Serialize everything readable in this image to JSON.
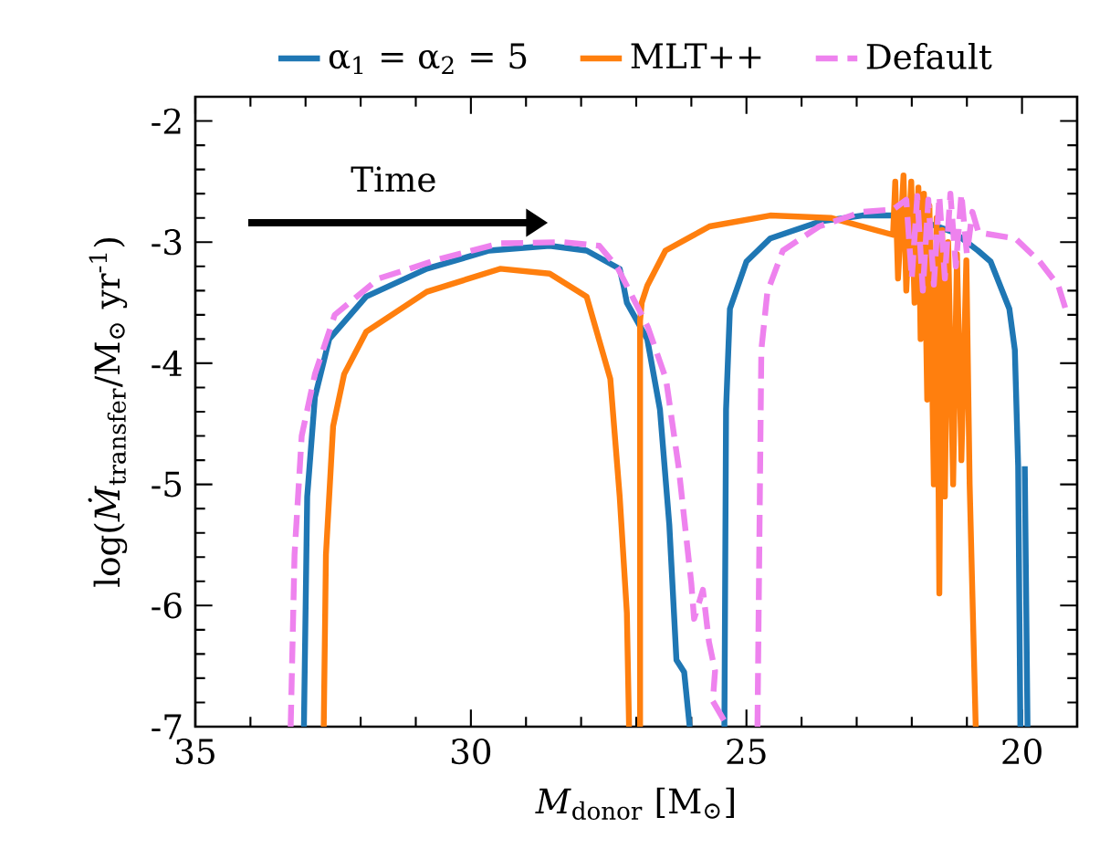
{
  "chart_data": {
    "type": "line",
    "xlabel": "*M*$_{donor}$ [M$_{⊙}$]",
    "ylabel": "log(*Ṁ*$_{transfer}$/M$_{⊙}$ yr$^{-1}$)",
    "annotations": [
      "Time"
    ],
    "xlim": [
      35,
      19
    ],
    "ylim": [
      -7,
      -1.8
    ],
    "xticks": [
      35,
      30,
      25,
      20
    ],
    "yticks": [
      -7,
      -6,
      -5,
      -4,
      -3,
      -2
    ],
    "legend": "top",
    "series": [
      {
        "name": "α$_{1}$ = α$_{2}$ = 5",
        "color": "#1f77b4",
        "line_style": "solid",
        "x": [
          33.03,
          32.97,
          32.83,
          32.57,
          31.9,
          30.8,
          29.67,
          28.57,
          27.9,
          27.3,
          27.23,
          27.17,
          26.8,
          26.57,
          26.4,
          26.27,
          26.13,
          26.03,
          null,
          25.4,
          25.37,
          25.3,
          25.0,
          24.57,
          23.67,
          22.9,
          22.33,
          22.13,
          21.67,
          21.23,
          20.8,
          20.57,
          20.23,
          20.13,
          20.07,
          20.03,
          null,
          19.95,
          19.9
        ],
        "values": [
          -7,
          -5.1,
          -4.28,
          -3.8,
          -3.45,
          -3.22,
          -3.07,
          -3.03,
          -3.07,
          -3.22,
          -3.36,
          -3.5,
          -3.8,
          -4.38,
          -5.33,
          -6.45,
          -6.55,
          -7,
          null,
          -7,
          -4.38,
          -3.55,
          -3.16,
          -2.97,
          -2.83,
          -2.78,
          -2.78,
          -2.85,
          -2.85,
          -2.92,
          -3.07,
          -3.16,
          -3.55,
          -3.89,
          -4.85,
          -7,
          null,
          -4.85,
          -7
        ]
      },
      {
        "name": "MLT++",
        "color": "#ff7f0e",
        "line_style": "solid",
        "x": [
          32.67,
          32.63,
          32.5,
          32.3,
          31.9,
          30.8,
          29.47,
          28.57,
          27.9,
          27.47,
          27.3,
          27.17,
          27.13,
          null,
          26.93,
          26.93,
          26.9,
          26.8,
          26.47,
          25.67,
          24.57,
          23.47,
          22.34,
          22.3,
          22.25,
          22.15,
          22.1,
          22.01,
          21.95,
          21.88,
          21.84,
          21.78,
          21.72,
          21.68,
          21.6,
          21.55,
          21.5,
          21.45,
          21.4,
          21.34,
          21.25,
          21.18,
          21.1,
          21.01,
          20.95,
          20.84
        ],
        "values": [
          -7,
          -5.58,
          -4.52,
          -4.09,
          -3.74,
          -3.41,
          -3.22,
          -3.26,
          -3.45,
          -4.13,
          -5.1,
          -6.06,
          -7,
          null,
          -7,
          -3.65,
          -3.5,
          -3.36,
          -3.07,
          -2.87,
          -2.78,
          -2.8,
          -2.94,
          -2.5,
          -3.3,
          -2.45,
          -3.4,
          -2.5,
          -3.5,
          -2.55,
          -3.8,
          -2.6,
          -4.3,
          -2.7,
          -5.0,
          -2.8,
          -5.9,
          -2.9,
          -5.1,
          -3.0,
          -5.0,
          -3.1,
          -4.8,
          -3.15,
          -5.0,
          -7
        ]
      },
      {
        "name": "Default",
        "color": "#ee82ee",
        "line_style": "dashed",
        "x": [
          33.27,
          33.2,
          33.07,
          32.83,
          32.47,
          31.67,
          30.57,
          29.47,
          28.33,
          27.67,
          27.34,
          26.79,
          26.46,
          26.23,
          26.0,
          25.95,
          25.79,
          25.68,
          25.57,
          25.61,
          25.34,
          null,
          24.8,
          24.73,
          24.62,
          24.34,
          23.68,
          22.9,
          22.34,
          22.1,
          22.0,
          21.9,
          21.8,
          21.7,
          21.6,
          21.5,
          21.4,
          21.3,
          21.2,
          21.1,
          21.0,
          20.9,
          20.79,
          20.12,
          19.68,
          19.34,
          19.21
        ],
        "values": [
          -7,
          -5.58,
          -4.6,
          -4.09,
          -3.6,
          -3.3,
          -3.14,
          -3.01,
          -3.0,
          -3.03,
          -3.21,
          -3.7,
          -4.13,
          -4.86,
          -5.82,
          -6.11,
          -5.87,
          -6.3,
          -6.54,
          -6.79,
          -7,
          null,
          -7,
          -3.89,
          -3.41,
          -3.07,
          -2.87,
          -2.75,
          -2.73,
          -2.65,
          -3.3,
          -2.62,
          -3.4,
          -2.65,
          -3.35,
          -2.62,
          -3.3,
          -2.6,
          -3.2,
          -2.6,
          -3.1,
          -2.75,
          -2.92,
          -2.97,
          -3.16,
          -3.36,
          -3.55
        ]
      }
    ]
  }
}
